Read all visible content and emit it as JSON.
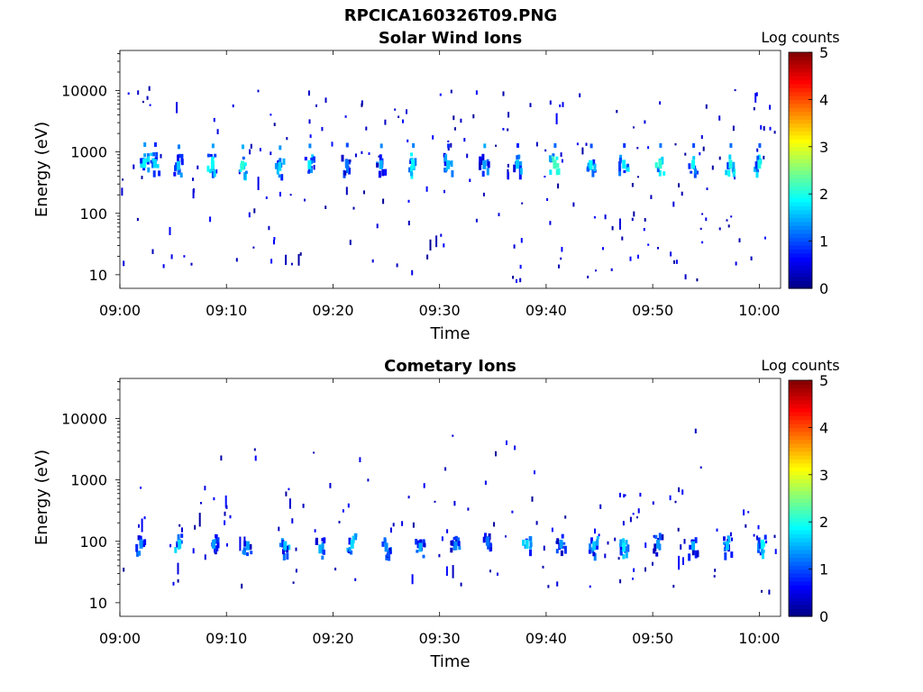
{
  "figure": {
    "title": "RPCICA160326T09.PNG"
  },
  "chart_data": [
    {
      "type": "heatmap",
      "title": "Solar Wind Ions",
      "xlabel": "Time",
      "ylabel": "Energy (eV)",
      "x_ticks": [
        "09:00",
        "09:10",
        "09:20",
        "09:30",
        "09:40",
        "09:50",
        "10:00"
      ],
      "x_range_minutes": [
        0,
        62
      ],
      "y_scale": "log",
      "y_ticks": [
        10,
        100,
        1000,
        10000
      ],
      "y_range": [
        6,
        45000
      ],
      "colorbar": {
        "label": "Log counts",
        "ticks": [
          0,
          1,
          2,
          3,
          4,
          5
        ],
        "range": [
          0,
          5
        ],
        "colormap": "jet"
      },
      "grid": false,
      "bursts": [
        {
          "time_min": 2.3,
          "energy_eV": 650,
          "log_counts": 1.9
        },
        {
          "time_min": 3.3,
          "energy_eV": 650,
          "log_counts": 1.7
        },
        {
          "time_min": 5.5,
          "energy_eV": 600,
          "log_counts": 1.6
        },
        {
          "time_min": 8.7,
          "energy_eV": 620,
          "log_counts": 1.9
        },
        {
          "time_min": 11.5,
          "energy_eV": 600,
          "log_counts": 2.1
        },
        {
          "time_min": 15.0,
          "energy_eV": 580,
          "log_counts": 1.7
        },
        {
          "time_min": 17.8,
          "energy_eV": 620,
          "log_counts": 1.8
        },
        {
          "time_min": 21.3,
          "energy_eV": 640,
          "log_counts": 1.2
        },
        {
          "time_min": 24.5,
          "energy_eV": 620,
          "log_counts": 1.5
        },
        {
          "time_min": 27.5,
          "energy_eV": 630,
          "log_counts": 1.9
        },
        {
          "time_min": 30.8,
          "energy_eV": 620,
          "log_counts": 1.6
        },
        {
          "time_min": 34.2,
          "energy_eV": 620,
          "log_counts": 1.4
        },
        {
          "time_min": 37.3,
          "energy_eV": 630,
          "log_counts": 1.6
        },
        {
          "time_min": 40.8,
          "energy_eV": 630,
          "log_counts": 2.2
        },
        {
          "time_min": 44.2,
          "energy_eV": 620,
          "log_counts": 1.9
        },
        {
          "time_min": 47.3,
          "energy_eV": 630,
          "log_counts": 1.8
        },
        {
          "time_min": 50.7,
          "energy_eV": 630,
          "log_counts": 2.1
        },
        {
          "time_min": 53.8,
          "energy_eV": 630,
          "log_counts": 1.9
        },
        {
          "time_min": 57.3,
          "energy_eV": 630,
          "log_counts": 2.0
        },
        {
          "time_min": 60.0,
          "energy_eV": 630,
          "log_counts": 2.0
        }
      ]
    },
    {
      "type": "heatmap",
      "title": "Cometary Ions",
      "xlabel": "Time",
      "ylabel": "Energy (eV)",
      "x_ticks": [
        "09:00",
        "09:10",
        "09:20",
        "09:30",
        "09:40",
        "09:50",
        "10:00"
      ],
      "x_range_minutes": [
        0,
        62
      ],
      "y_scale": "log",
      "y_ticks": [
        10,
        100,
        1000,
        10000
      ],
      "y_range": [
        6,
        45000
      ],
      "colorbar": {
        "label": "Log counts",
        "ticks": [
          0,
          1,
          2,
          3,
          4,
          5
        ],
        "range": [
          0,
          5
        ],
        "colormap": "jet"
      },
      "grid": false,
      "bursts": [
        {
          "time_min": 2.0,
          "energy_eV": 90,
          "log_counts": 1.3
        },
        {
          "time_min": 5.6,
          "energy_eV": 90,
          "log_counts": 1.7
        },
        {
          "time_min": 8.8,
          "energy_eV": 90,
          "log_counts": 1.4
        },
        {
          "time_min": 12.0,
          "energy_eV": 85,
          "log_counts": 1.4
        },
        {
          "time_min": 15.5,
          "energy_eV": 85,
          "log_counts": 1.6
        },
        {
          "time_min": 18.8,
          "energy_eV": 75,
          "log_counts": 1.5
        },
        {
          "time_min": 21.8,
          "energy_eV": 90,
          "log_counts": 1.7
        },
        {
          "time_min": 25.0,
          "energy_eV": 80,
          "log_counts": 1.3
        },
        {
          "time_min": 28.2,
          "energy_eV": 80,
          "log_counts": 1.5
        },
        {
          "time_min": 31.5,
          "energy_eV": 85,
          "log_counts": 1.3
        },
        {
          "time_min": 34.5,
          "energy_eV": 100,
          "log_counts": 1.2
        },
        {
          "time_min": 38.2,
          "energy_eV": 90,
          "log_counts": 1.7
        },
        {
          "time_min": 41.4,
          "energy_eV": 90,
          "log_counts": 1.4
        },
        {
          "time_min": 44.5,
          "energy_eV": 85,
          "log_counts": 1.6
        },
        {
          "time_min": 47.3,
          "energy_eV": 80,
          "log_counts": 1.8
        },
        {
          "time_min": 50.5,
          "energy_eV": 90,
          "log_counts": 1.4
        },
        {
          "time_min": 53.8,
          "energy_eV": 85,
          "log_counts": 1.5
        },
        {
          "time_min": 57.0,
          "energy_eV": 85,
          "log_counts": 1.6
        },
        {
          "time_min": 60.3,
          "energy_eV": 90,
          "log_counts": 1.9
        }
      ]
    }
  ]
}
